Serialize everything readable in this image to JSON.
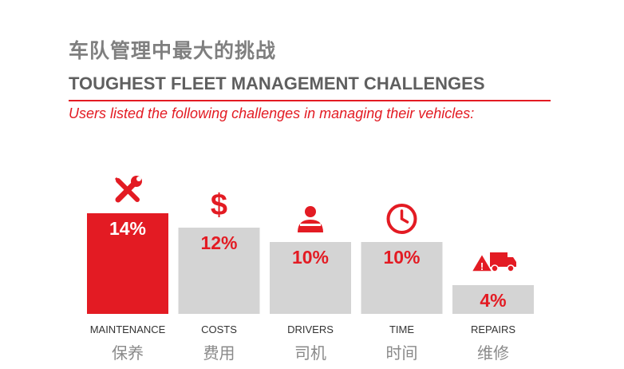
{
  "header": {
    "title_cn": "车队管理中最大的挑战",
    "title_en": "TOUGHEST FLEET MANAGEMENT CHALLENGES",
    "subtitle": "Users listed the following challenges in managing their vehicles:"
  },
  "colors": {
    "accent": "#e31b23",
    "bar": "#d4d4d4",
    "rule": "#e31b23"
  },
  "chart_data": {
    "type": "bar",
    "categories": [
      "MAINTENANCE",
      "COSTS",
      "DRIVERS",
      "TIME",
      "REPAIRS"
    ],
    "categories_cn": [
      "保养",
      "费用",
      "司机",
      "时间",
      "维修"
    ],
    "values": [
      14,
      12,
      10,
      10,
      4
    ],
    "value_labels": [
      "14%",
      "12%",
      "10%",
      "10%",
      "4%"
    ],
    "icons": [
      "wrench-screwdriver-icon",
      "dollar-icon",
      "driver-icon",
      "clock-icon",
      "truck-warning-icon"
    ],
    "highlight_index": 0,
    "ylim": [
      0,
      14
    ],
    "grid": false,
    "legend": "none"
  }
}
